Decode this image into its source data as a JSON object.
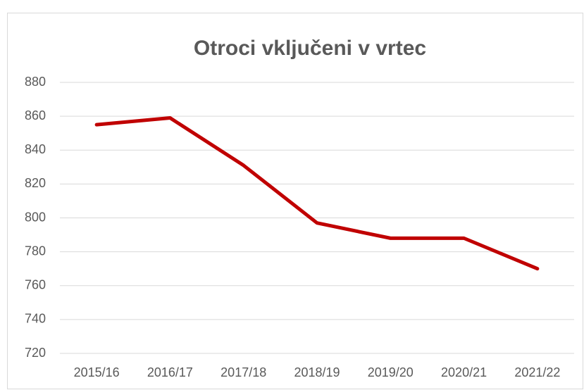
{
  "chart_data": {
    "type": "line",
    "title": "Otroci vključeni v vrtec",
    "categories": [
      "2015/16",
      "2016/17",
      "2017/18",
      "2018/19",
      "2019/20",
      "2020/21",
      "2021/22"
    ],
    "series": [
      {
        "name": "Otroci",
        "color": "#c00000",
        "values": [
          855,
          859,
          831,
          797,
          788,
          788,
          770
        ]
      }
    ],
    "ylim": [
      720,
      880
    ],
    "yticks": [
      720,
      740,
      760,
      780,
      800,
      820,
      840,
      860,
      880
    ],
    "grid": true,
    "legend": false
  }
}
